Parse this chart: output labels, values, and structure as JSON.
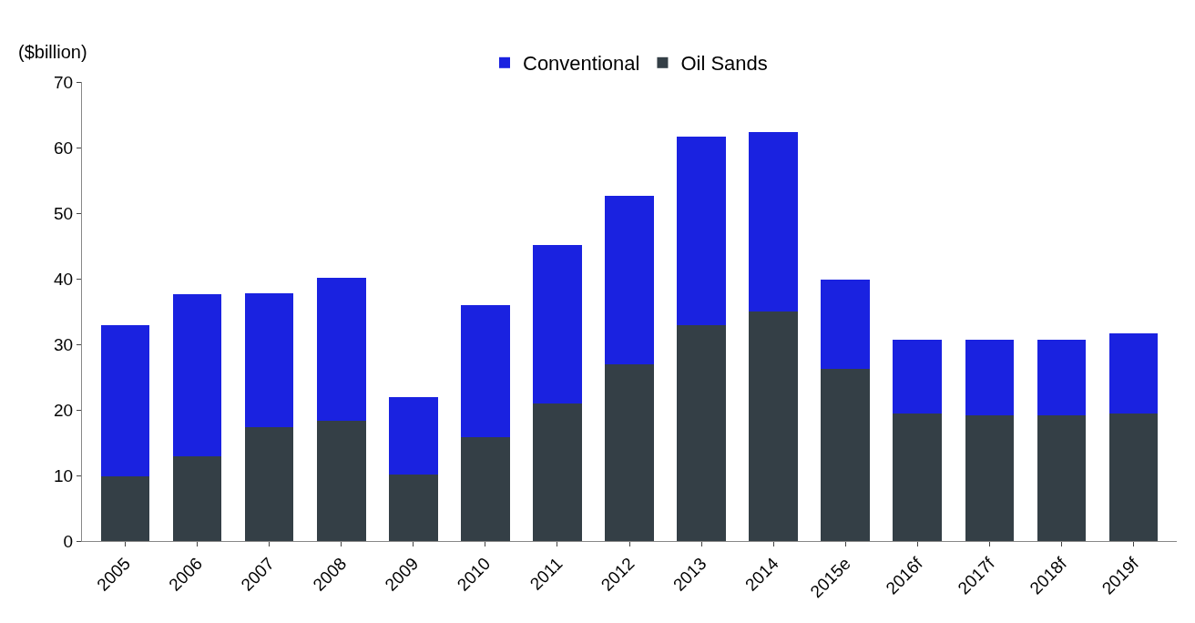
{
  "chart_data": {
    "type": "bar",
    "stacked": true,
    "ylabel": "($billion)",
    "categories": [
      "2005",
      "2006",
      "2007",
      "2008",
      "2009",
      "2010",
      "2011",
      "2012",
      "2013",
      "2014",
      "2015e",
      "2016f",
      "2017f",
      "2018f",
      "2019f"
    ],
    "series": [
      {
        "name": "Oil Sands",
        "color": "#343f46",
        "values": [
          9.8,
          12.9,
          17.4,
          18.3,
          10.2,
          15.9,
          21.0,
          26.9,
          32.9,
          35.0,
          26.3,
          19.5,
          19.1,
          19.1,
          19.5
        ]
      },
      {
        "name": "Conventional",
        "color": "#1a22e0",
        "values": [
          23.1,
          24.7,
          20.4,
          21.8,
          11.7,
          20.1,
          24.2,
          25.7,
          28.8,
          27.4,
          13.5,
          11.2,
          11.6,
          11.6,
          12.2
        ]
      }
    ],
    "ylim": [
      0,
      70
    ],
    "yticks": [
      0,
      10,
      20,
      30,
      40,
      50,
      60,
      70
    ],
    "legend": "top"
  }
}
